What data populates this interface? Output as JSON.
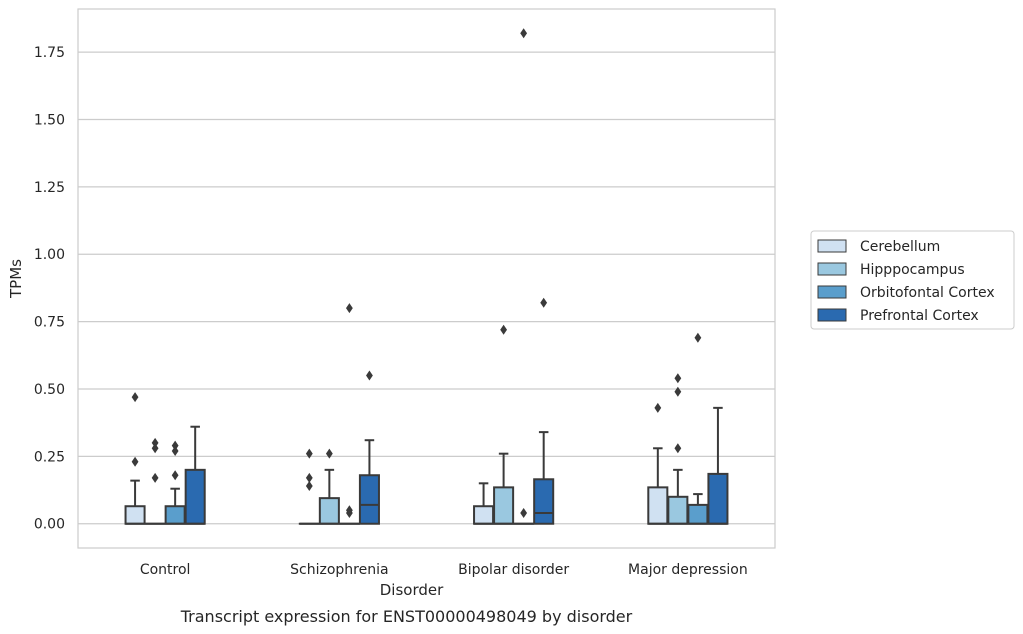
{
  "chart_data": {
    "type": "boxplot",
    "caption": "Transcript expression for ENST00000498049 by disorder",
    "xlabel": "Disorder",
    "ylabel": "TPMs",
    "ylim": [
      -0.09,
      1.91
    ],
    "yticks": [
      "0.00",
      "0.25",
      "0.50",
      "0.75",
      "1.00",
      "1.25",
      "1.50",
      "1.75"
    ],
    "grid": "horizontal",
    "legend_position": "right",
    "categories": [
      "Control",
      "Schizophrenia",
      "Bipolar disorder",
      "Major depression"
    ],
    "series": [
      {
        "name": "Cerebellum",
        "color": "#d0e1f2",
        "boxes": [
          {
            "q1": 0.0,
            "median": 0.0,
            "q3": 0.065,
            "whisker_low": 0.0,
            "whisker_high": 0.16,
            "outliers": [
              0.23,
              0.47
            ]
          },
          {
            "q1": 0.0,
            "median": 0.0,
            "q3": 0.0,
            "whisker_low": 0.0,
            "whisker_high": 0.0,
            "outliers": [
              0.14,
              0.17,
              0.26
            ]
          },
          {
            "q1": 0.0,
            "median": 0.0,
            "q3": 0.065,
            "whisker_low": 0.0,
            "whisker_high": 0.15,
            "outliers": []
          },
          {
            "q1": 0.0,
            "median": 0.0,
            "q3": 0.135,
            "whisker_low": 0.0,
            "whisker_high": 0.28,
            "outliers": [
              0.43
            ]
          }
        ]
      },
      {
        "name": "Hipppocampus",
        "color": "#9ac8e0",
        "boxes": [
          {
            "q1": 0.0,
            "median": 0.0,
            "q3": 0.0,
            "whisker_low": 0.0,
            "whisker_high": 0.0,
            "outliers": [
              0.17,
              0.28,
              0.3
            ]
          },
          {
            "q1": 0.0,
            "median": 0.0,
            "q3": 0.095,
            "whisker_low": 0.0,
            "whisker_high": 0.2,
            "outliers": [
              0.26
            ]
          },
          {
            "q1": 0.0,
            "median": 0.0,
            "q3": 0.135,
            "whisker_low": 0.0,
            "whisker_high": 0.26,
            "outliers": [
              0.72
            ]
          },
          {
            "q1": 0.0,
            "median": 0.0,
            "q3": 0.1,
            "whisker_low": 0.0,
            "whisker_high": 0.2,
            "outliers": [
              0.28,
              0.49,
              0.54
            ]
          }
        ]
      },
      {
        "name": "Orbitofontal Cortex",
        "color": "#5a9ecc",
        "boxes": [
          {
            "q1": 0.0,
            "median": 0.0,
            "q3": 0.065,
            "whisker_low": 0.0,
            "whisker_high": 0.13,
            "outliers": [
              0.18,
              0.27,
              0.29
            ]
          },
          {
            "q1": 0.0,
            "median": 0.0,
            "q3": 0.0,
            "whisker_low": 0.0,
            "whisker_high": 0.0,
            "outliers": [
              0.04,
              0.05,
              0.8
            ]
          },
          {
            "q1": 0.0,
            "median": 0.0,
            "q3": 0.0,
            "whisker_low": 0.0,
            "whisker_high": 0.0,
            "outliers": [
              0.04,
              1.82
            ]
          },
          {
            "q1": 0.0,
            "median": 0.0,
            "q3": 0.07,
            "whisker_low": 0.0,
            "whisker_high": 0.11,
            "outliers": [
              0.69
            ]
          }
        ]
      },
      {
        "name": "Prefrontal Cortex",
        "color": "#2a6ab0",
        "boxes": [
          {
            "q1": 0.0,
            "median": 0.0,
            "q3": 0.2,
            "whisker_low": 0.0,
            "whisker_high": 0.36,
            "outliers": []
          },
          {
            "q1": 0.0,
            "median": 0.07,
            "q3": 0.18,
            "whisker_low": 0.0,
            "whisker_high": 0.31,
            "outliers": [
              0.55
            ]
          },
          {
            "q1": 0.0,
            "median": 0.04,
            "q3": 0.165,
            "whisker_low": 0.0,
            "whisker_high": 0.34,
            "outliers": [
              0.82
            ]
          },
          {
            "q1": 0.0,
            "median": 0.0,
            "q3": 0.185,
            "whisker_low": 0.0,
            "whisker_high": 0.43,
            "outliers": []
          }
        ]
      }
    ]
  }
}
